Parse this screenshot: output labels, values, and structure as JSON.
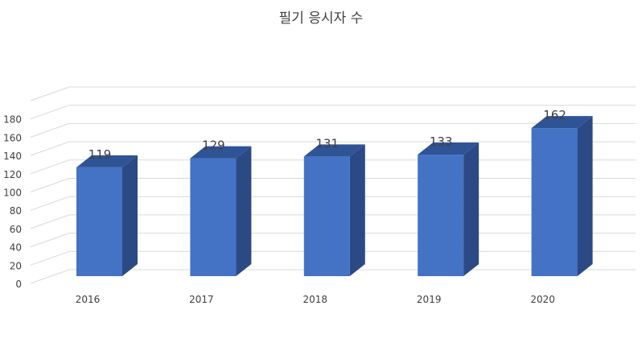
{
  "chart_data": {
    "type": "bar",
    "title": "필기 응시자 수",
    "categories": [
      "2016",
      "2017",
      "2018",
      "2019",
      "2020"
    ],
    "series": [
      {
        "values": [
          119,
          129,
          131,
          133,
          162
        ]
      }
    ],
    "yticks": [
      "0",
      "20",
      "40",
      "60",
      "80",
      "100",
      "120",
      "140",
      "160",
      "180"
    ],
    "ylim": [
      0,
      200
    ],
    "grid": true,
    "legend": "none",
    "colors": {
      "bar_front": "#4472C4",
      "bar_side": "#2B4A85",
      "bar_top": "#2F5496",
      "grid": "#D9D9D9"
    }
  }
}
